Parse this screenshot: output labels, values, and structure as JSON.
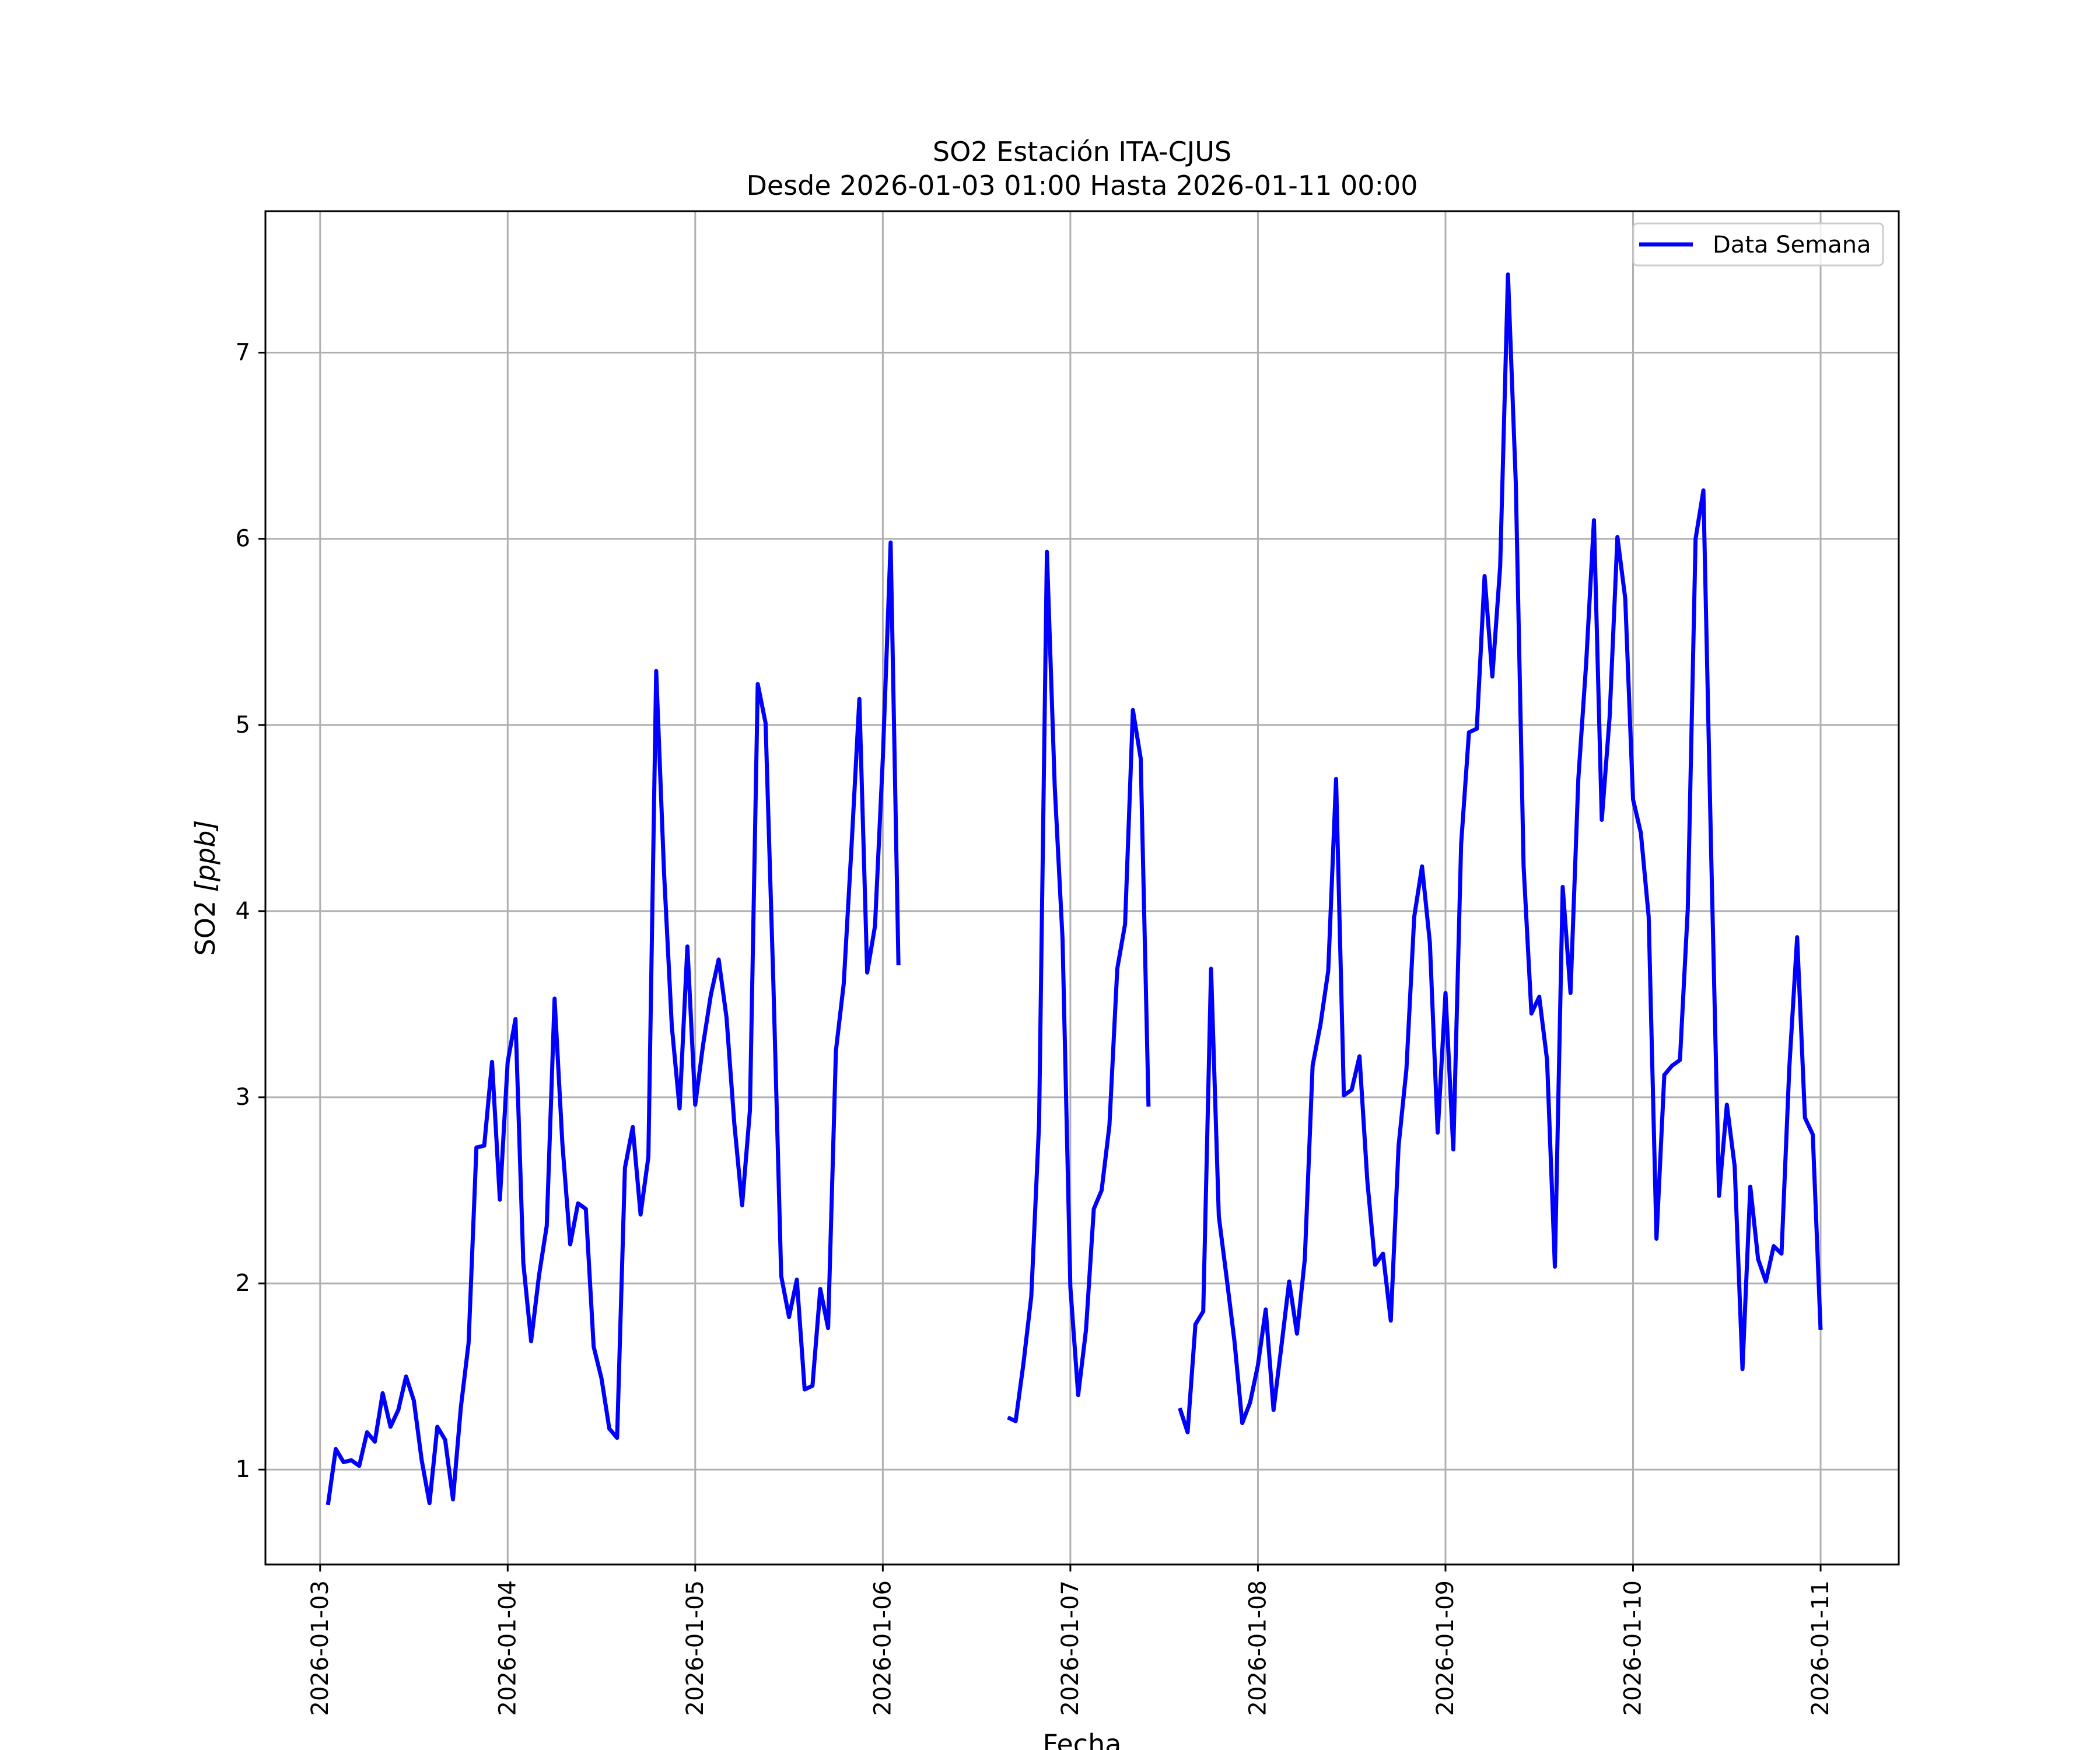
{
  "chart_data": {
    "type": "line",
    "title": "SO2 Estación ITA-CJUS",
    "subtitle": "Desde 2026-01-03 01:00 Hasta 2026-01-11 00:00",
    "xlabel": "Fecha",
    "ylabel_main": "SO2 ",
    "ylabel_unit": "[ppb]",
    "xlim": [
      "2026-01-02 17:00",
      "2026-01-11 10:00"
    ],
    "ylim": [
      0.49,
      7.76
    ],
    "grid": true,
    "legend_position": "top-right",
    "x_ticks": [
      "2026-01-03",
      "2026-01-04",
      "2026-01-05",
      "2026-01-06",
      "2026-01-07",
      "2026-01-08",
      "2026-01-09",
      "2026-01-10",
      "2026-01-11"
    ],
    "y_ticks": [
      1,
      2,
      3,
      4,
      5,
      6,
      7
    ],
    "series": [
      {
        "name": "Data Semana",
        "color": "#0000ff",
        "segments": [
          [
            [
              "2026-01-03 01:00",
              0.81
            ],
            [
              "2026-01-03 02:00",
              1.11
            ],
            [
              "2026-01-03 03:00",
              1.04
            ],
            [
              "2026-01-03 04:00",
              1.05
            ],
            [
              "2026-01-03 05:00",
              1.02
            ],
            [
              "2026-01-03 06:00",
              1.2
            ],
            [
              "2026-01-03 07:00",
              1.15
            ],
            [
              "2026-01-03 08:00",
              1.41
            ],
            [
              "2026-01-03 09:00",
              1.23
            ],
            [
              "2026-01-03 10:00",
              1.32
            ],
            [
              "2026-01-03 11:00",
              1.5
            ],
            [
              "2026-01-03 12:00",
              1.37
            ],
            [
              "2026-01-03 13:00",
              1.05
            ],
            [
              "2026-01-03 14:00",
              0.82
            ],
            [
              "2026-01-03 15:00",
              1.23
            ],
            [
              "2026-01-03 16:00",
              1.16
            ],
            [
              "2026-01-03 17:00",
              0.84
            ],
            [
              "2026-01-03 18:00",
              1.33
            ],
            [
              "2026-01-03 19:00",
              1.68
            ],
            [
              "2026-01-03 20:00",
              2.73
            ],
            [
              "2026-01-03 21:00",
              2.74
            ],
            [
              "2026-01-03 22:00",
              3.19
            ],
            [
              "2026-01-03 23:00",
              2.45
            ],
            [
              "2026-01-04 00:00",
              3.19
            ],
            [
              "2026-01-04 01:00",
              3.42
            ],
            [
              "2026-01-04 02:00",
              2.11
            ],
            [
              "2026-01-04 03:00",
              1.69
            ],
            [
              "2026-01-04 04:00",
              2.04
            ],
            [
              "2026-01-04 05:00",
              2.31
            ],
            [
              "2026-01-04 06:00",
              3.53
            ],
            [
              "2026-01-04 07:00",
              2.75
            ],
            [
              "2026-01-04 08:00",
              2.21
            ],
            [
              "2026-01-04 09:00",
              2.43
            ],
            [
              "2026-01-04 10:00",
              2.4
            ],
            [
              "2026-01-04 11:00",
              1.66
            ],
            [
              "2026-01-04 12:00",
              1.49
            ],
            [
              "2026-01-04 13:00",
              1.22
            ],
            [
              "2026-01-04 14:00",
              1.17
            ],
            [
              "2026-01-04 15:00",
              2.62
            ],
            [
              "2026-01-04 16:00",
              2.84
            ],
            [
              "2026-01-04 17:00",
              2.37
            ],
            [
              "2026-01-04 18:00",
              2.68
            ],
            [
              "2026-01-04 19:00",
              5.29
            ],
            [
              "2026-01-04 20:00",
              4.21
            ],
            [
              "2026-01-04 21:00",
              3.38
            ],
            [
              "2026-01-04 22:00",
              2.94
            ],
            [
              "2026-01-04 23:00",
              3.81
            ],
            [
              "2026-01-05 00:00",
              2.96
            ],
            [
              "2026-01-05 01:00",
              3.28
            ],
            [
              "2026-01-05 02:00",
              3.55
            ],
            [
              "2026-01-05 03:00",
              3.74
            ],
            [
              "2026-01-05 04:00",
              3.43
            ],
            [
              "2026-01-05 05:00",
              2.86
            ],
            [
              "2026-01-05 06:00",
              2.42
            ],
            [
              "2026-01-05 07:00",
              2.93
            ],
            [
              "2026-01-05 08:00",
              5.22
            ],
            [
              "2026-01-05 09:00",
              5.01
            ],
            [
              "2026-01-05 10:00",
              3.61
            ],
            [
              "2026-01-05 11:00",
              2.04
            ],
            [
              "2026-01-05 12:00",
              1.82
            ],
            [
              "2026-01-05 13:00",
              2.02
            ],
            [
              "2026-01-05 14:00",
              1.43
            ],
            [
              "2026-01-05 15:00",
              1.45
            ],
            [
              "2026-01-05 16:00",
              1.97
            ],
            [
              "2026-01-05 17:00",
              1.76
            ],
            [
              "2026-01-05 18:00",
              3.25
            ],
            [
              "2026-01-05 19:00",
              3.61
            ],
            [
              "2026-01-05 20:00",
              4.35
            ],
            [
              "2026-01-05 21:00",
              5.14
            ],
            [
              "2026-01-05 22:00",
              3.67
            ],
            [
              "2026-01-05 23:00",
              3.92
            ],
            [
              "2026-01-06 00:00",
              4.82
            ],
            [
              "2026-01-06 01:00",
              5.98
            ],
            [
              "2026-01-06 02:00",
              3.71
            ]
          ],
          [
            [
              "2026-01-06 16:00",
              1.28
            ],
            [
              "2026-01-06 17:00",
              1.26
            ],
            [
              "2026-01-06 18:00",
              1.57
            ],
            [
              "2026-01-06 19:00",
              1.93
            ],
            [
              "2026-01-06 20:00",
              2.86
            ],
            [
              "2026-01-06 21:00",
              5.93
            ],
            [
              "2026-01-06 22:00",
              4.67
            ],
            [
              "2026-01-06 23:00",
              3.85
            ],
            [
              "2026-01-07 00:00",
              1.98
            ],
            [
              "2026-01-07 01:00",
              1.4
            ],
            [
              "2026-01-07 02:00",
              1.75
            ],
            [
              "2026-01-07 03:00",
              2.4
            ],
            [
              "2026-01-07 04:00",
              2.5
            ],
            [
              "2026-01-07 05:00",
              2.85
            ],
            [
              "2026-01-07 06:00",
              3.69
            ],
            [
              "2026-01-07 07:00",
              3.93
            ],
            [
              "2026-01-07 08:00",
              5.08
            ],
            [
              "2026-01-07 09:00",
              4.82
            ],
            [
              "2026-01-07 10:00",
              2.95
            ]
          ],
          [
            [
              "2026-01-07 14:00",
              1.33
            ],
            [
              "2026-01-07 15:00",
              1.2
            ],
            [
              "2026-01-07 16:00",
              1.78
            ],
            [
              "2026-01-07 17:00",
              1.85
            ],
            [
              "2026-01-07 18:00",
              3.69
            ],
            [
              "2026-01-07 19:00",
              2.36
            ],
            [
              "2026-01-07 20:00",
              2.03
            ],
            [
              "2026-01-07 21:00",
              1.69
            ],
            [
              "2026-01-07 22:00",
              1.25
            ],
            [
              "2026-01-07 23:00",
              1.36
            ],
            [
              "2026-01-08 00:00",
              1.56
            ],
            [
              "2026-01-08 01:00",
              1.86
            ],
            [
              "2026-01-08 02:00",
              1.32
            ],
            [
              "2026-01-08 03:00",
              1.66
            ],
            [
              "2026-01-08 04:00",
              2.01
            ],
            [
              "2026-01-08 05:00",
              1.73
            ],
            [
              "2026-01-08 06:00",
              2.13
            ],
            [
              "2026-01-08 07:00",
              3.17
            ],
            [
              "2026-01-08 08:00",
              3.39
            ],
            [
              "2026-01-08 09:00",
              3.68
            ],
            [
              "2026-01-08 10:00",
              4.71
            ],
            [
              "2026-01-08 11:00",
              3.01
            ],
            [
              "2026-01-08 12:00",
              3.04
            ],
            [
              "2026-01-08 13:00",
              3.22
            ],
            [
              "2026-01-08 14:00",
              2.55
            ],
            [
              "2026-01-08 15:00",
              2.1
            ],
            [
              "2026-01-08 16:00",
              2.16
            ],
            [
              "2026-01-08 17:00",
              1.8
            ],
            [
              "2026-01-08 18:00",
              2.74
            ],
            [
              "2026-01-08 19:00",
              3.15
            ],
            [
              "2026-01-08 20:00",
              3.97
            ],
            [
              "2026-01-08 21:00",
              4.24
            ],
            [
              "2026-01-08 22:00",
              3.83
            ],
            [
              "2026-01-08 23:00",
              2.81
            ],
            [
              "2026-01-09 00:00",
              3.56
            ],
            [
              "2026-01-09 01:00",
              2.72
            ],
            [
              "2026-01-09 02:00",
              4.36
            ],
            [
              "2026-01-09 03:00",
              4.96
            ],
            [
              "2026-01-09 04:00",
              4.98
            ],
            [
              "2026-01-09 05:00",
              5.8
            ],
            [
              "2026-01-09 06:00",
              5.26
            ],
            [
              "2026-01-09 07:00",
              5.85
            ],
            [
              "2026-01-09 08:00",
              7.42
            ],
            [
              "2026-01-09 09:00",
              6.3
            ],
            [
              "2026-01-09 10:00",
              4.24
            ],
            [
              "2026-01-09 11:00",
              3.45
            ],
            [
              "2026-01-09 12:00",
              3.54
            ],
            [
              "2026-01-09 13:00",
              3.2
            ],
            [
              "2026-01-09 14:00",
              2.09
            ],
            [
              "2026-01-09 15:00",
              4.13
            ],
            [
              "2026-01-09 16:00",
              3.56
            ],
            [
              "2026-01-09 17:00",
              4.71
            ],
            [
              "2026-01-09 18:00",
              5.33
            ],
            [
              "2026-01-09 19:00",
              6.1
            ],
            [
              "2026-01-09 20:00",
              4.49
            ],
            [
              "2026-01-09 21:00",
              5.04
            ],
            [
              "2026-01-09 22:00",
              6.01
            ],
            [
              "2026-01-09 23:00",
              5.68
            ],
            [
              "2026-01-10 00:00",
              4.6
            ],
            [
              "2026-01-10 01:00",
              4.42
            ],
            [
              "2026-01-10 02:00",
              3.97
            ],
            [
              "2026-01-10 03:00",
              2.24
            ],
            [
              "2026-01-10 04:00",
              3.12
            ],
            [
              "2026-01-10 05:00",
              3.17
            ],
            [
              "2026-01-10 06:00",
              3.2
            ],
            [
              "2026-01-10 07:00",
              4.01
            ],
            [
              "2026-01-10 08:00",
              6.0
            ],
            [
              "2026-01-10 09:00",
              6.26
            ],
            [
              "2026-01-10 10:00",
              4.3
            ],
            [
              "2026-01-10 11:00",
              2.47
            ],
            [
              "2026-01-10 12:00",
              2.96
            ],
            [
              "2026-01-10 13:00",
              2.63
            ],
            [
              "2026-01-10 14:00",
              1.54
            ],
            [
              "2026-01-10 15:00",
              2.52
            ],
            [
              "2026-01-10 16:00",
              2.13
            ],
            [
              "2026-01-10 17:00",
              2.01
            ],
            [
              "2026-01-10 18:00",
              2.2
            ],
            [
              "2026-01-10 19:00",
              2.16
            ],
            [
              "2026-01-10 20:00",
              3.16
            ],
            [
              "2026-01-10 21:00",
              3.86
            ],
            [
              "2026-01-10 22:00",
              2.89
            ],
            [
              "2026-01-10 23:00",
              2.8
            ],
            [
              "2026-01-11 00:00",
              1.75
            ]
          ]
        ]
      }
    ]
  }
}
